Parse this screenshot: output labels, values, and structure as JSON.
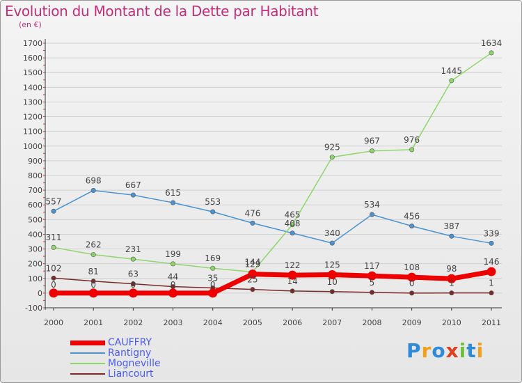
{
  "title": "Evolution du Montant de la Dette par Habitant",
  "subtitle": "(en €)",
  "logo": {
    "text": "Proxiti",
    "letters": [
      {
        "ch": "P",
        "color": "#2e8ad8"
      },
      {
        "ch": "r",
        "color": "#f0a020"
      },
      {
        "ch": "o",
        "color": "#2e8ad8"
      },
      {
        "ch": "x",
        "color": "#e04020"
      },
      {
        "ch": "i",
        "color": "#70c040"
      },
      {
        "ch": "t",
        "color": "#2e8ad8"
      },
      {
        "ch": "i",
        "color": "#f0a020"
      }
    ]
  },
  "chart_data": {
    "type": "line",
    "title": "Evolution du Montant de la Dette par Habitant",
    "ylabel": "(en €)",
    "xlabel": "",
    "ylim": [
      -100,
      1700
    ],
    "yticks": [
      -100,
      0,
      100,
      200,
      300,
      400,
      500,
      600,
      700,
      800,
      900,
      1000,
      1100,
      1200,
      1300,
      1400,
      1500,
      1600,
      1700
    ],
    "categories": [
      "2000",
      "2001",
      "2002",
      "2003",
      "2004",
      "2005",
      "2006",
      "2007",
      "2008",
      "2009",
      "2010",
      "2011"
    ],
    "grid": "horizontal",
    "legend_position": "bottom-left",
    "series": [
      {
        "name": "CAUFFRY",
        "color": "#ee0000",
        "values": [
          0,
          0,
          0,
          0,
          0,
          129,
          122,
          125,
          117,
          108,
          98,
          146
        ],
        "labels": [
          "0",
          "0",
          "0",
          "0",
          "0",
          "129",
          "122",
          "125",
          "117",
          "108",
          "98",
          "146"
        ]
      },
      {
        "name": "Rantigny",
        "color": "#4b93d1",
        "values": [
          557,
          698,
          667,
          615,
          553,
          476,
          408,
          340,
          534,
          456,
          387,
          339
        ],
        "labels": [
          "557",
          "698",
          "667",
          "615",
          "553",
          "476",
          "408",
          "340",
          "534",
          "456",
          "387",
          "339"
        ]
      },
      {
        "name": "Mogneville",
        "color": "#8fd66a",
        "values": [
          311,
          262,
          231,
          199,
          169,
          144,
          465,
          925,
          967,
          976,
          1445,
          1634
        ],
        "labels": [
          "311",
          "262",
          "231",
          "199",
          "169",
          "144",
          "465",
          "925",
          "967",
          "976",
          "1445",
          "1634"
        ]
      },
      {
        "name": "Liancourt",
        "color": "#7a2a2a",
        "values": [
          102,
          81,
          63,
          44,
          35,
          25,
          14,
          10,
          5,
          0,
          1,
          1
        ],
        "labels": [
          "102",
          "81",
          "63",
          "44",
          "35",
          "25",
          "14",
          "10",
          "5",
          "0",
          "1",
          "1"
        ]
      }
    ]
  }
}
